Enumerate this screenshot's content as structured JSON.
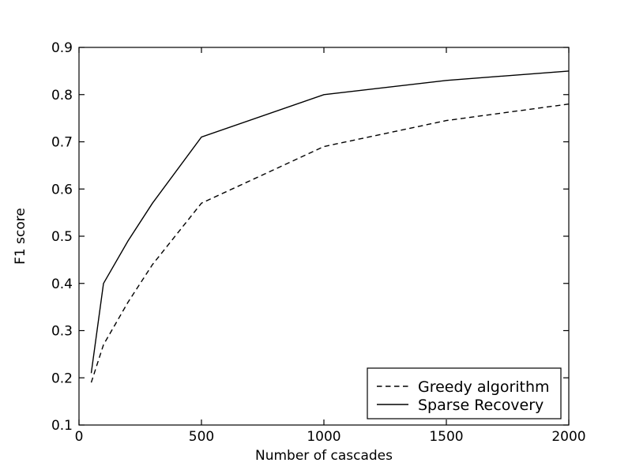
{
  "figure": {
    "background": "#ffffff",
    "frame_color": "#000000"
  },
  "chart_data": {
    "type": "line",
    "title": "",
    "xlabel": "Number of cascades",
    "ylabel": "F1 score",
    "xlim": [
      0,
      2000
    ],
    "ylim": [
      0.1,
      0.9
    ],
    "xticks": [
      0,
      500,
      1000,
      1500,
      2000
    ],
    "yticks": [
      0.1,
      0.2,
      0.3,
      0.4,
      0.5,
      0.6,
      0.7,
      0.8,
      0.9
    ],
    "grid": false,
    "legend_position": "lower right",
    "series": [
      {
        "name": "Greedy algorithm",
        "style": "dashed",
        "color": "#000000",
        "x": [
          50,
          100,
          200,
          300,
          500,
          1000,
          1500,
          2000
        ],
        "y": [
          0.19,
          0.27,
          0.36,
          0.44,
          0.57,
          0.69,
          0.745,
          0.78
        ]
      },
      {
        "name": "Sparse Recovery",
        "style": "solid",
        "color": "#000000",
        "x": [
          50,
          100,
          200,
          300,
          500,
          1000,
          1500,
          2000
        ],
        "y": [
          0.21,
          0.4,
          0.49,
          0.57,
          0.71,
          0.8,
          0.83,
          0.85
        ]
      }
    ]
  }
}
